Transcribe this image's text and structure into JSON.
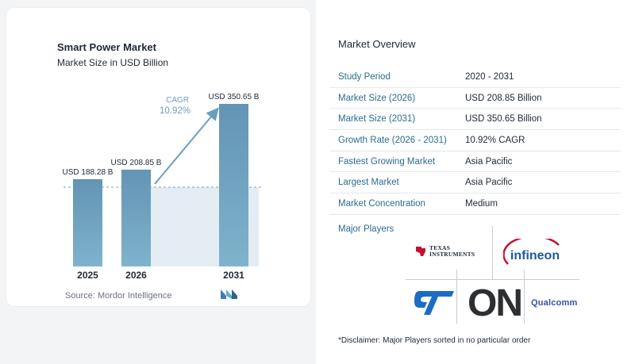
{
  "chart_data": {
    "type": "bar",
    "title": "Smart Power Market",
    "subtitle": "Market Size in USD Billion",
    "categories": [
      "2025",
      "2026",
      "2031"
    ],
    "values": [
      188.28,
      208.85,
      350.65
    ],
    "data_labels": [
      "USD 188.28 B",
      "USD 208.85 B",
      "USD 350.65 B"
    ],
    "cagr_label": "CAGR",
    "cagr_value": "10.92%",
    "ylim": [
      0,
      350.65
    ],
    "grid": false,
    "colors": {
      "bar": "#6699b8",
      "bar_light": "#7fb0c9",
      "arrow": "#6a9fc0",
      "band": "#e4ecf4"
    }
  },
  "source": "Source:  Mordor Intelligence",
  "overview": {
    "title": "Market Overview",
    "rows": [
      {
        "key": "Study Period",
        "value": "2020 - 2031"
      },
      {
        "key": "Market Size (2026)",
        "value": "USD 208.85 Billion"
      },
      {
        "key": "Market Size (2031)",
        "value": "USD 350.65 Billion"
      },
      {
        "key": "Growth Rate (2026 - 2031)",
        "value": "10.92% CAGR"
      },
      {
        "key": "Fastest Growing Market",
        "value": "Asia Pacific"
      },
      {
        "key": "Largest Market",
        "value": "Asia Pacific"
      },
      {
        "key": "Market Concentration",
        "value": "Medium"
      }
    ]
  },
  "players": {
    "label": "Major Players",
    "logos": [
      {
        "name": "texas-instruments-logo",
        "text": "TEXAS\nINSTRUMENTS"
      },
      {
        "name": "infineon-logo",
        "text": "infineon"
      },
      {
        "name": "st-logo",
        "text": "ST"
      },
      {
        "name": "on-semi-logo",
        "text": "ON"
      },
      {
        "name": "qualcomm-logo",
        "text": "Qualcomm"
      }
    ]
  },
  "disclaimer": "*Disclaimer: Major Players sorted in no particular order"
}
